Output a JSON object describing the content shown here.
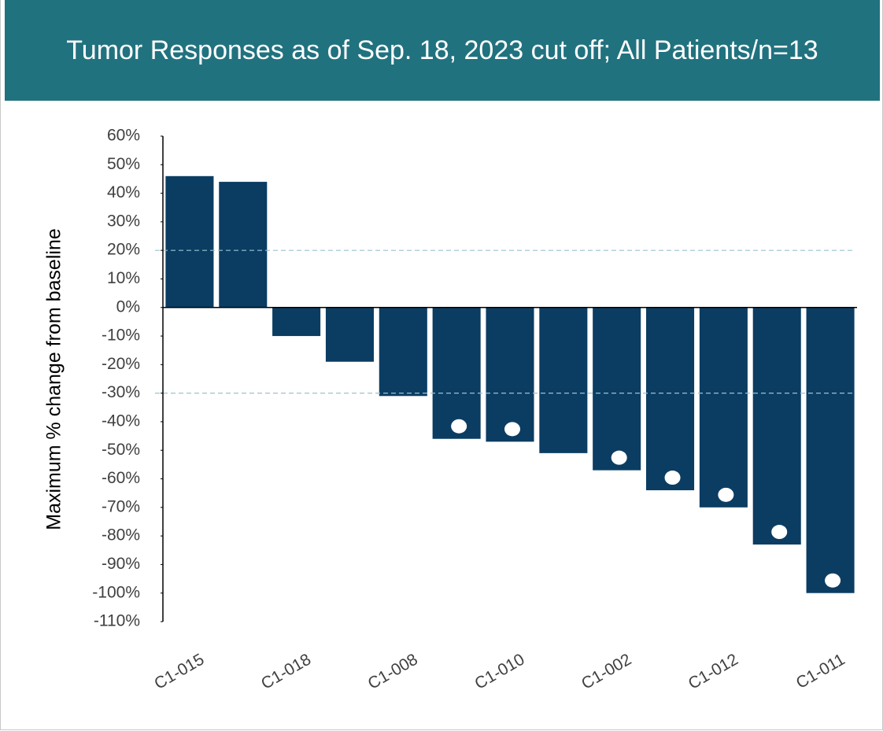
{
  "chart_data": {
    "type": "bar",
    "title": "Tumor Responses as of Sep. 18, 2023 cut off; All Patients/n=13",
    "y_label": "Maximum % change from baseline",
    "categories": [
      "C1-015",
      null,
      "C1-018",
      null,
      "C1-008",
      null,
      "C1-010",
      null,
      "C1-002",
      null,
      "C1-012",
      null,
      "C1-011"
    ],
    "values": [
      46,
      44,
      -10,
      -19,
      -31,
      -46,
      -47,
      -51,
      -57,
      -64,
      -70,
      -83,
      -100
    ],
    "markers": [
      false,
      false,
      false,
      false,
      false,
      true,
      true,
      false,
      true,
      true,
      true,
      true,
      true
    ],
    "color": "#0b3d63",
    "marker_color": "#ffffff",
    "reference_lines": [
      20,
      -30
    ],
    "reference_color": "#9ac3d0",
    "ylim": [
      -110,
      60
    ],
    "yticks": [
      {
        "value": 60,
        "label": "60%"
      },
      {
        "value": 50,
        "label": "50%"
      },
      {
        "value": 40,
        "label": "40%"
      },
      {
        "value": 30,
        "label": "30%"
      },
      {
        "value": 20,
        "label": "20%"
      },
      {
        "value": 10,
        "label": "10%"
      },
      {
        "value": 0,
        "label": "0%"
      },
      {
        "value": -10,
        "label": "-10%"
      },
      {
        "value": -20,
        "label": "-20%"
      },
      {
        "value": -30,
        "label": "-30%"
      },
      {
        "value": -40,
        "label": "-40%"
      },
      {
        "value": -50,
        "label": "-50%"
      },
      {
        "value": -60,
        "label": "-60%"
      },
      {
        "value": -70,
        "label": "-70%"
      },
      {
        "value": -80,
        "label": "-80%"
      },
      {
        "value": -90,
        "label": "-90%"
      },
      {
        "value": -100,
        "label": "-100%"
      },
      {
        "value": -110,
        "label": "-110%"
      }
    ]
  }
}
